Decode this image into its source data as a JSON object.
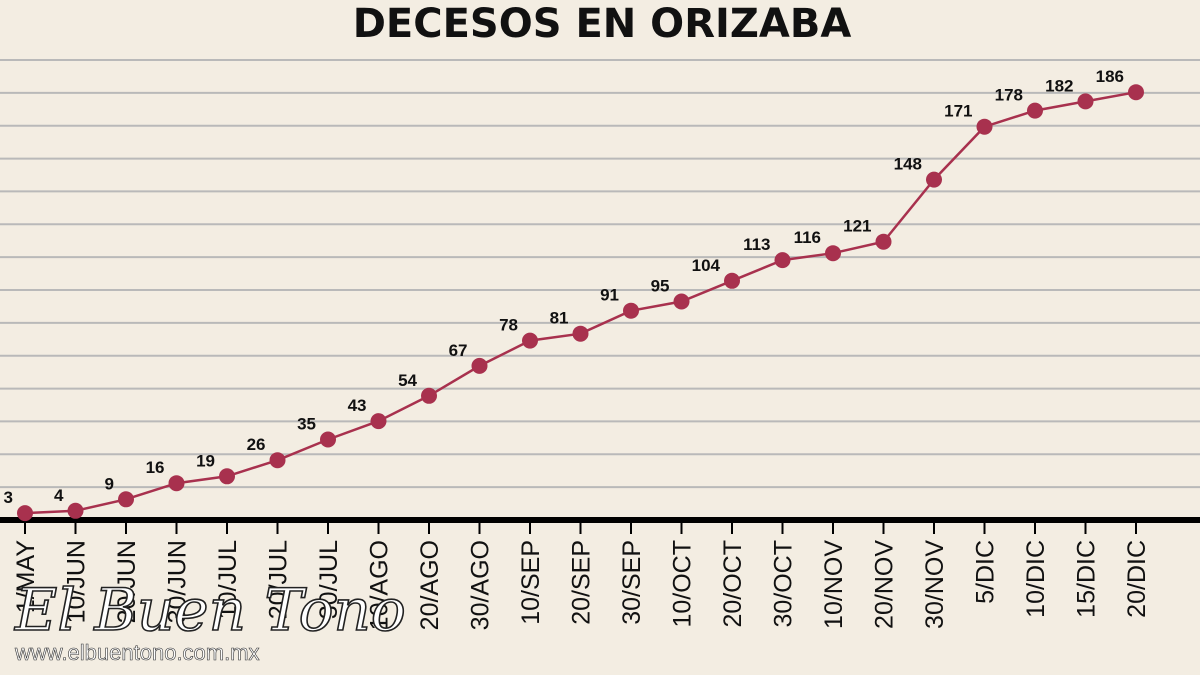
{
  "chart_data": {
    "type": "line",
    "title": "DECESOS EN ORIZABA",
    "categories": [
      "1/MAY",
      "10/JUN",
      "20/JUN",
      "30/JUN",
      "10/JUL",
      "20/JUL",
      "30/JUL",
      "10/AGO",
      "20/AGO",
      "30/AGO",
      "10/SEP",
      "20/SEP",
      "30/SEP",
      "10/OCT",
      "20/OCT",
      "30/OCT",
      "10/NOV",
      "20/NOV",
      "30/NOV",
      "5/DIC",
      "10/DIC",
      "15/DIC",
      "20/DIC"
    ],
    "values": [
      3,
      4,
      9,
      16,
      19,
      26,
      35,
      43,
      54,
      67,
      78,
      81,
      91,
      95,
      104,
      113,
      116,
      121,
      148,
      171,
      178,
      182,
      186
    ],
    "ylim": [
      0,
      200
    ],
    "grid": true,
    "colors": {
      "line": "#a8314e",
      "marker": "#a8314e",
      "grid": "#b9b9b9",
      "axis": "#000000",
      "background": "#f3ede2"
    }
  },
  "watermark": {
    "logo": "El Buen Tono",
    "url": "www.elbuentono.com.mx"
  }
}
